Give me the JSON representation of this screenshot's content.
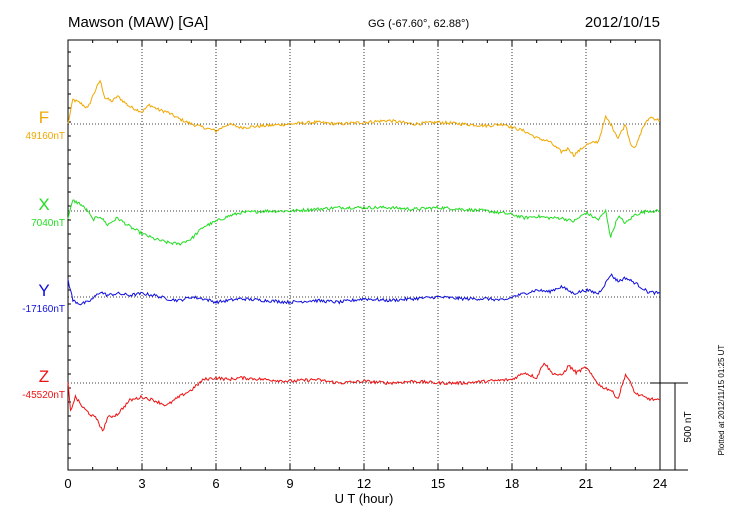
{
  "header": {
    "station": "Mawson (MAW)  [GA]",
    "coords": "GG (-67.60°,  62.88°)",
    "date": "2012/10/15"
  },
  "footer": {
    "plotted_note": "Plotted at 2012/11/15 01:25 UT"
  },
  "scale_bar": {
    "label": "500 nT",
    "value_nT": 500
  },
  "chart_data": {
    "type": "line",
    "title": "Mawson (MAW)  [GA]",
    "xlabel": "U T (hour)",
    "xlim": [
      0,
      24
    ],
    "x_ticks": [
      0,
      3,
      6,
      9,
      12,
      15,
      18,
      21,
      24
    ],
    "x_tick_labels": [
      "0",
      "3",
      "6",
      "9",
      "12",
      "15",
      "18",
      "21",
      "24"
    ],
    "grid": true,
    "series": [
      {
        "name": "F",
        "baseline_label": "49160nT",
        "baseline_nT": 49160,
        "color": "#F0A800",
        "x": [
          0,
          0.2,
          0.5,
          0.8,
          1.0,
          1.3,
          1.5,
          1.8,
          2.0,
          2.5,
          3.0,
          3.3,
          3.7,
          4.0,
          4.5,
          5.0,
          5.5,
          6.0,
          6.5,
          7.0,
          8.0,
          9.0,
          10.0,
          11.0,
          12.0,
          13.0,
          14.0,
          15.0,
          16.0,
          17.0,
          17.7,
          18.0,
          18.5,
          19.0,
          19.5,
          20.0,
          20.3,
          20.5,
          21.0,
          21.5,
          21.8,
          22.0,
          22.3,
          22.6,
          22.8,
          23.0,
          23.3,
          23.6,
          24.0
        ],
        "y": [
          49160,
          49300,
          49280,
          49250,
          49320,
          49410,
          49310,
          49290,
          49320,
          49260,
          49230,
          49270,
          49240,
          49230,
          49190,
          49160,
          49140,
          49120,
          49160,
          49140,
          49150,
          49160,
          49170,
          49160,
          49170,
          49180,
          49160,
          49170,
          49160,
          49150,
          49160,
          49140,
          49120,
          49080,
          49060,
          49000,
          49020,
          48980,
          49040,
          49060,
          49200,
          49160,
          49080,
          49160,
          49050,
          49020,
          49140,
          49200,
          49180
        ]
      },
      {
        "name": "X",
        "baseline_label": "7040nT",
        "baseline_nT": 7040,
        "color": "#22DD22",
        "x": [
          0,
          0.2,
          0.5,
          0.8,
          1.0,
          1.3,
          1.6,
          2.0,
          2.5,
          3.0,
          3.5,
          4.0,
          4.5,
          5.0,
          5.5,
          6.0,
          6.5,
          7.0,
          8.0,
          9.0,
          10.0,
          11.0,
          12.0,
          13.0,
          14.0,
          15.0,
          16.0,
          17.0,
          18.0,
          18.5,
          19.0,
          19.5,
          20.0,
          20.5,
          21.0,
          21.5,
          21.8,
          22.0,
          22.3,
          22.6,
          23.0,
          23.5,
          24.0
        ],
        "y": [
          7000,
          7100,
          7080,
          7040,
          6990,
          7010,
          6960,
          7000,
          6950,
          6910,
          6880,
          6860,
          6850,
          6880,
          6950,
          6980,
          7010,
          7030,
          7040,
          7040,
          7050,
          7060,
          7060,
          7060,
          7050,
          7060,
          7050,
          7040,
          7020,
          7000,
          7010,
          7000,
          7000,
          6980,
          7030,
          6990,
          7040,
          6890,
          7010,
          6970,
          7020,
          7040,
          7040
        ]
      },
      {
        "name": "Y",
        "baseline_label": "-17160nT",
        "baseline_nT": -17160,
        "color": "#1010DD",
        "x": [
          0,
          0.2,
          0.5,
          0.8,
          1.0,
          1.3,
          1.6,
          2.0,
          2.5,
          3.0,
          3.5,
          4.0,
          4.5,
          5.0,
          5.5,
          6.0,
          6.5,
          7.0,
          8.0,
          9.0,
          10.0,
          11.0,
          12.0,
          13.0,
          14.0,
          15.0,
          16.0,
          17.0,
          17.7,
          18.0,
          18.5,
          19.0,
          19.5,
          20.0,
          20.5,
          21.0,
          21.5,
          21.8,
          22.0,
          22.3,
          22.6,
          23.0,
          23.5,
          24.0
        ],
        "y": [
          -17060,
          -17180,
          -17200,
          -17190,
          -17170,
          -17130,
          -17150,
          -17140,
          -17150,
          -17140,
          -17150,
          -17170,
          -17180,
          -17160,
          -17170,
          -17190,
          -17180,
          -17170,
          -17180,
          -17190,
          -17180,
          -17190,
          -17170,
          -17180,
          -17170,
          -17160,
          -17170,
          -17170,
          -17180,
          -17160,
          -17140,
          -17120,
          -17130,
          -17100,
          -17140,
          -17120,
          -17140,
          -17080,
          -17030,
          -17070,
          -17050,
          -17080,
          -17130,
          -17140
        ]
      },
      {
        "name": "Z",
        "baseline_label": "-45520nT",
        "baseline_nT": -45520,
        "color": "#EE1111",
        "x": [
          0,
          0.1,
          0.3,
          0.6,
          0.9,
          1.2,
          1.4,
          1.6,
          2.0,
          2.5,
          3.0,
          3.5,
          4.0,
          4.5,
          5.0,
          5.5,
          6.0,
          6.5,
          7.0,
          8.0,
          9.0,
          10.0,
          11.0,
          12.0,
          13.0,
          14.0,
          15.0,
          16.0,
          17.0,
          18.0,
          18.5,
          19.0,
          19.3,
          19.6,
          20.0,
          20.3,
          20.6,
          21.0,
          21.3,
          21.6,
          22.0,
          22.3,
          22.6,
          22.8,
          23.0,
          23.5,
          24.0
        ],
        "y": [
          -45520,
          -45680,
          -45600,
          -45660,
          -45700,
          -45730,
          -45800,
          -45720,
          -45700,
          -45620,
          -45600,
          -45620,
          -45650,
          -45600,
          -45560,
          -45500,
          -45490,
          -45500,
          -45490,
          -45500,
          -45510,
          -45500,
          -45520,
          -45510,
          -45520,
          -45510,
          -45520,
          -45520,
          -45510,
          -45500,
          -45460,
          -45490,
          -45400,
          -45460,
          -45480,
          -45420,
          -45460,
          -45430,
          -45490,
          -45540,
          -45560,
          -45610,
          -45470,
          -45520,
          -45580,
          -45610,
          -45620
        ]
      }
    ]
  }
}
